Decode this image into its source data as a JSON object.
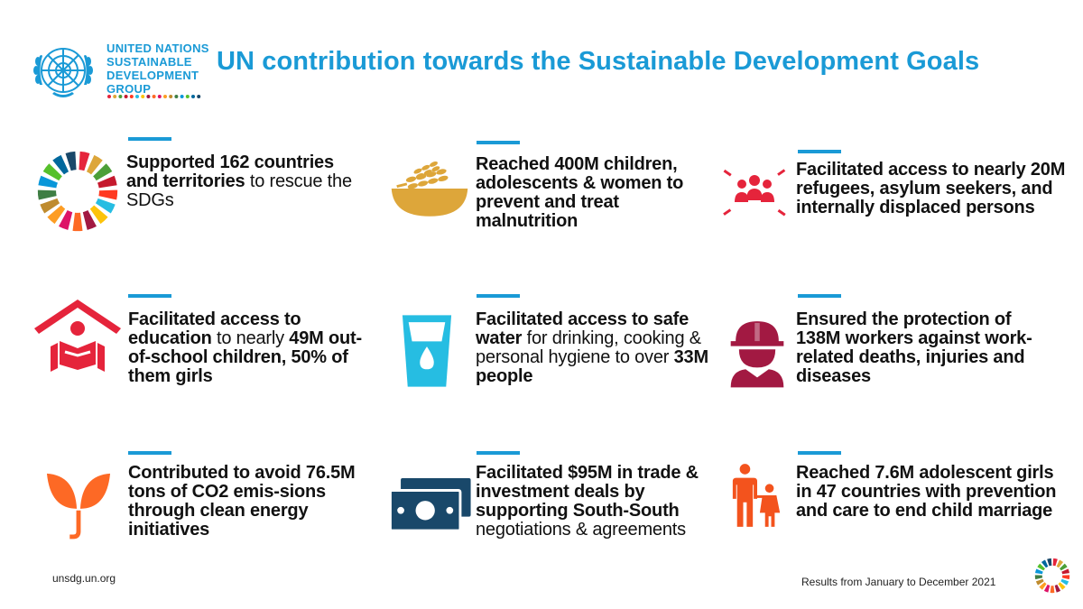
{
  "header": {
    "org_name_lines": [
      "UNITED NATIONS",
      "SUSTAINABLE",
      "DEVELOPMENT",
      "GROUP"
    ],
    "title": "UN contribution towards the Sustainable Development Goals"
  },
  "colors": {
    "brand_blue": "#1a9ad6",
    "red": "#e5243b",
    "gold": "#dda63a",
    "light_blue": "#26bde2",
    "maroon": "#a21942",
    "orange": "#fd6925",
    "navy": "#19486a",
    "orange_red": "#f3531d"
  },
  "cards": [
    {
      "icon": "sdg-wheel-icon",
      "bold1": "Supported 162 countries and territories",
      "reg1": " to rescue the SDGs",
      "bold2": "",
      "reg2": ""
    },
    {
      "icon": "wheat-bowl-icon",
      "bold1": "Reached 400M children, adolescents & women to prevent and treat malnutrition",
      "reg1": "",
      "bold2": "",
      "reg2": ""
    },
    {
      "icon": "refugees-group-icon",
      "bold1": "Facilitated access to nearly 20M refugees, asylum seekers, and internally displaced persons",
      "reg1": "",
      "bold2": "",
      "reg2": ""
    },
    {
      "icon": "house-reader-icon",
      "bold1": "Facilitated access to education",
      "reg1": " to nearly ",
      "bold2": "49M out-of-school children, 50% of them girls",
      "reg2": ""
    },
    {
      "icon": "water-glass-icon",
      "bold1": "Facilitated access to safe water",
      "reg1": " for drinking, cooking & personal hygiene to over ",
      "bold2": "33M people",
      "reg2": ""
    },
    {
      "icon": "worker-helmet-icon",
      "bold1": "Ensured the protection of 138M workers against work-related deaths, injuries and diseases",
      "reg1": "",
      "bold2": "",
      "reg2": ""
    },
    {
      "icon": "sprout-icon",
      "bold1": "Contributed to avoid 76.5M tons of CO2 emis-sions through clean energy initiatives",
      "reg1": "",
      "bold2": "",
      "reg2": ""
    },
    {
      "icon": "money-bills-icon",
      "bold1": "Facilitated $95M in trade & investment deals by supporting South-South",
      "reg1": " negotiations & agreements",
      "bold2": "",
      "reg2": ""
    },
    {
      "icon": "adult-child-icon",
      "bold1": "Reached 7.6M adolescent girls in 47 countries with prevention and care to end child marriage",
      "reg1": "",
      "bold2": "",
      "reg2": ""
    }
  ],
  "footer": {
    "url": "unsdg.un.org",
    "note": "Results  from January to December  2021"
  }
}
